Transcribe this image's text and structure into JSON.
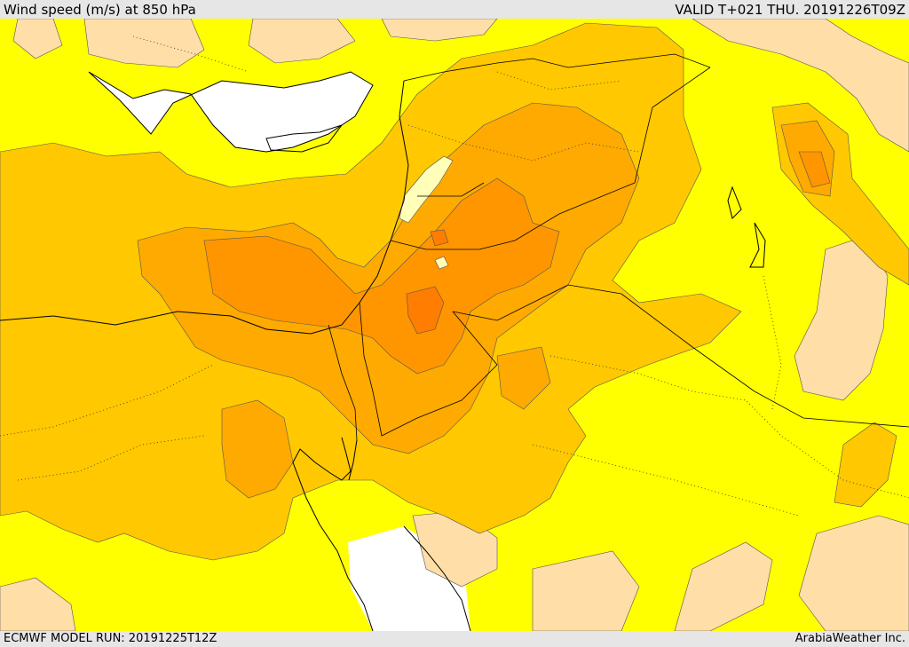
{
  "header": {
    "title": "Wind speed (m/s) at 850 hPa",
    "valid_time": "VALID T+021 THU. 20191226T09Z"
  },
  "footer": {
    "model_run": "ECMWF MODEL RUN: 20191225T12Z",
    "credit": "ArabiaWeather Inc."
  },
  "colors": {
    "sea": "#ffffff",
    "band_low": "#ffdea8",
    "band_1": "#ffff00",
    "band_2": "#ffc800",
    "band_3": "#ffaa00",
    "band_4": "#ff9600",
    "band_5": "#ff7d00",
    "band_lightest": "#ffffb8",
    "coastline": "#000000",
    "border": "#000000"
  }
}
